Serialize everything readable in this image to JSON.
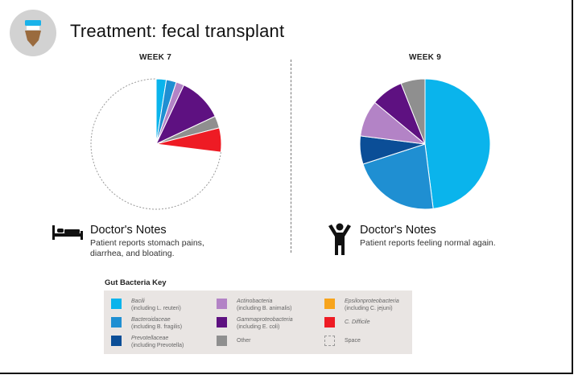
{
  "header": {
    "title": "Treatment: fecal transplant"
  },
  "charts": {
    "left": {
      "week_label": "WEEK 7"
    },
    "right": {
      "week_label": "WEEK 9"
    }
  },
  "notes": {
    "left": {
      "title": "Doctor's Notes",
      "text": "Patient reports stomach pains, diarrhea, and bloating."
    },
    "right": {
      "title": "Doctor's Notes",
      "text": "Patient reports feeling normal again."
    }
  },
  "key": {
    "title": "Gut Bacteria Key",
    "items": [
      {
        "name": "Bacili",
        "sub": "(including L. reuteri)",
        "color": "#0ab4ec",
        "italic": true
      },
      {
        "name": "Bacteroidaceae",
        "sub": "(including B. fragilis)",
        "color": "#1f8fd2",
        "italic": true
      },
      {
        "name": "Prevotellaceae",
        "sub": "(including Prevotella)",
        "color": "#0b4e97",
        "italic": true
      },
      {
        "name": "Actinobacteria",
        "sub": "(including B. animalis)",
        "color": "#b383c6",
        "italic": true
      },
      {
        "name": "Gammaproteobacteria",
        "sub": "(including E. coli)",
        "color": "#5e1181",
        "italic": true
      },
      {
        "name": "Other",
        "sub": "",
        "color": "#8f8f8f",
        "italic": false
      },
      {
        "name": "Epsilonproteobacteria",
        "sub": "(including C. jejuni)",
        "color": "#f7a41d",
        "italic": true
      },
      {
        "name": "C. Difficile",
        "sub": "",
        "color": "#ee1b24",
        "italic": true
      },
      {
        "name": "Space",
        "sub": "",
        "color": "none",
        "italic": false
      }
    ]
  },
  "chart_data": [
    {
      "type": "pie",
      "title": "WEEK 7",
      "categories": [
        "Bacili",
        "Bacteroidaceae",
        "Actinobacteria",
        "Gammaproteobacteria",
        "Other",
        "C. Difficile",
        "Space"
      ],
      "values": [
        2.5,
        2.5,
        2,
        11,
        3,
        6,
        73
      ],
      "colors": [
        "#0ab4ec",
        "#1f8fd2",
        "#b383c6",
        "#5e1181",
        "#8f8f8f",
        "#ee1b24",
        "none"
      ]
    },
    {
      "type": "pie",
      "title": "WEEK 9",
      "categories": [
        "Bacili",
        "Bacteroidaceae",
        "Prevotellaceae",
        "Actinobacteria",
        "Gammaproteobacteria",
        "Other"
      ],
      "values": [
        48,
        22,
        7,
        9,
        8,
        6
      ],
      "colors": [
        "#0ab4ec",
        "#1f8fd2",
        "#0b4e97",
        "#b383c6",
        "#5e1181",
        "#8f8f8f"
      ]
    }
  ]
}
